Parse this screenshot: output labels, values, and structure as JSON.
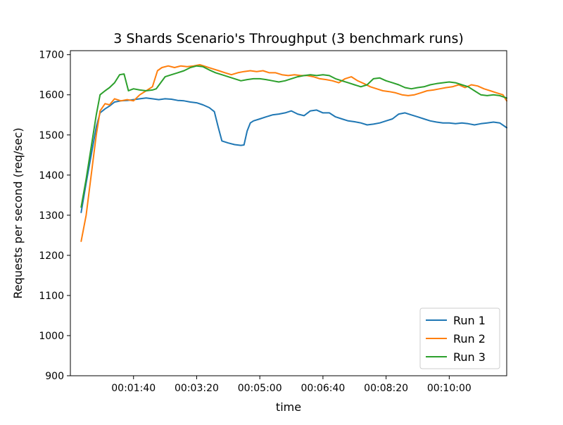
{
  "chart_data": {
    "type": "line",
    "title": "3 Shards Scenario's Throughput (3 benchmark runs)",
    "xlabel": "time",
    "ylabel": "Requests per second (req/sec)",
    "xlim_seconds": [
      0,
      691
    ],
    "ylim": [
      900,
      1710
    ],
    "x_ticks": [
      {
        "value": 100,
        "label": "00:01:40"
      },
      {
        "value": 200,
        "label": "00:03:20"
      },
      {
        "value": 300,
        "label": "00:05:00"
      },
      {
        "value": 400,
        "label": "00:06:40"
      },
      {
        "value": 500,
        "label": "00:08:20"
      },
      {
        "value": 600,
        "label": "00:10:00"
      }
    ],
    "y_ticks": [
      900,
      1000,
      1100,
      1200,
      1300,
      1400,
      1500,
      1600,
      1700
    ],
    "grid": false,
    "legend_position": "bottom-right",
    "x_unit": "seconds from start of run",
    "series": [
      {
        "name": "Run 1",
        "color": "#1f77b4",
        "points": [
          [
            17,
            1307
          ],
          [
            25,
            1380
          ],
          [
            33,
            1450
          ],
          [
            41,
            1520
          ],
          [
            47,
            1555
          ],
          [
            55,
            1565
          ],
          [
            62,
            1572
          ],
          [
            70,
            1582
          ],
          [
            80,
            1585
          ],
          [
            90,
            1586
          ],
          [
            100,
            1588
          ],
          [
            110,
            1590
          ],
          [
            120,
            1592
          ],
          [
            130,
            1590
          ],
          [
            140,
            1588
          ],
          [
            150,
            1590
          ],
          [
            160,
            1589
          ],
          [
            170,
            1586
          ],
          [
            180,
            1585
          ],
          [
            190,
            1582
          ],
          [
            200,
            1580
          ],
          [
            210,
            1575
          ],
          [
            220,
            1568
          ],
          [
            228,
            1558
          ],
          [
            234,
            1520
          ],
          [
            240,
            1485
          ],
          [
            250,
            1480
          ],
          [
            260,
            1476
          ],
          [
            270,
            1474
          ],
          [
            275,
            1475
          ],
          [
            280,
            1510
          ],
          [
            285,
            1530
          ],
          [
            290,
            1535
          ],
          [
            300,
            1540
          ],
          [
            310,
            1545
          ],
          [
            320,
            1550
          ],
          [
            330,
            1552
          ],
          [
            340,
            1555
          ],
          [
            350,
            1560
          ],
          [
            360,
            1552
          ],
          [
            370,
            1548
          ],
          [
            380,
            1560
          ],
          [
            390,
            1562
          ],
          [
            400,
            1555
          ],
          [
            410,
            1555
          ],
          [
            420,
            1545
          ],
          [
            430,
            1540
          ],
          [
            440,
            1535
          ],
          [
            450,
            1533
          ],
          [
            460,
            1530
          ],
          [
            470,
            1525
          ],
          [
            480,
            1527
          ],
          [
            490,
            1530
          ],
          [
            500,
            1535
          ],
          [
            510,
            1540
          ],
          [
            520,
            1552
          ],
          [
            530,
            1555
          ],
          [
            540,
            1550
          ],
          [
            550,
            1545
          ],
          [
            560,
            1540
          ],
          [
            570,
            1535
          ],
          [
            580,
            1532
          ],
          [
            590,
            1530
          ],
          [
            600,
            1530
          ],
          [
            610,
            1528
          ],
          [
            620,
            1530
          ],
          [
            630,
            1528
          ],
          [
            640,
            1525
          ],
          [
            650,
            1528
          ],
          [
            660,
            1530
          ],
          [
            670,
            1532
          ],
          [
            680,
            1530
          ],
          [
            691,
            1518
          ]
        ]
      },
      {
        "name": "Run 2",
        "color": "#ff7f0e",
        "points": [
          [
            17,
            1235
          ],
          [
            25,
            1300
          ],
          [
            33,
            1400
          ],
          [
            41,
            1500
          ],
          [
            47,
            1560
          ],
          [
            55,
            1578
          ],
          [
            62,
            1575
          ],
          [
            70,
            1590
          ],
          [
            80,
            1585
          ],
          [
            90,
            1588
          ],
          [
            100,
            1585
          ],
          [
            110,
            1600
          ],
          [
            120,
            1610
          ],
          [
            130,
            1620
          ],
          [
            138,
            1660
          ],
          [
            145,
            1668
          ],
          [
            155,
            1672
          ],
          [
            165,
            1668
          ],
          [
            175,
            1672
          ],
          [
            185,
            1670
          ],
          [
            195,
            1672
          ],
          [
            205,
            1675
          ],
          [
            215,
            1670
          ],
          [
            225,
            1665
          ],
          [
            235,
            1660
          ],
          [
            245,
            1655
          ],
          [
            255,
            1650
          ],
          [
            265,
            1655
          ],
          [
            275,
            1658
          ],
          [
            285,
            1660
          ],
          [
            295,
            1658
          ],
          [
            305,
            1660
          ],
          [
            315,
            1655
          ],
          [
            325,
            1655
          ],
          [
            335,
            1650
          ],
          [
            345,
            1648
          ],
          [
            355,
            1650
          ],
          [
            365,
            1648
          ],
          [
            375,
            1648
          ],
          [
            385,
            1645
          ],
          [
            395,
            1640
          ],
          [
            405,
            1638
          ],
          [
            415,
            1635
          ],
          [
            425,
            1630
          ],
          [
            435,
            1640
          ],
          [
            445,
            1645
          ],
          [
            455,
            1635
          ],
          [
            465,
            1628
          ],
          [
            475,
            1620
          ],
          [
            485,
            1615
          ],
          [
            495,
            1610
          ],
          [
            505,
            1608
          ],
          [
            515,
            1605
          ],
          [
            525,
            1600
          ],
          [
            535,
            1598
          ],
          [
            545,
            1600
          ],
          [
            555,
            1605
          ],
          [
            565,
            1610
          ],
          [
            575,
            1612
          ],
          [
            585,
            1615
          ],
          [
            595,
            1618
          ],
          [
            605,
            1620
          ],
          [
            615,
            1625
          ],
          [
            625,
            1618
          ],
          [
            635,
            1625
          ],
          [
            645,
            1622
          ],
          [
            655,
            1615
          ],
          [
            665,
            1610
          ],
          [
            675,
            1605
          ],
          [
            685,
            1600
          ],
          [
            691,
            1585
          ]
        ]
      },
      {
        "name": "Run 3",
        "color": "#2ca02c",
        "points": [
          [
            17,
            1320
          ],
          [
            25,
            1390
          ],
          [
            33,
            1470
          ],
          [
            41,
            1550
          ],
          [
            47,
            1600
          ],
          [
            55,
            1610
          ],
          [
            62,
            1618
          ],
          [
            70,
            1630
          ],
          [
            78,
            1650
          ],
          [
            85,
            1652
          ],
          [
            92,
            1610
          ],
          [
            100,
            1615
          ],
          [
            110,
            1612
          ],
          [
            120,
            1610
          ],
          [
            130,
            1612
          ],
          [
            136,
            1615
          ],
          [
            143,
            1630
          ],
          [
            150,
            1645
          ],
          [
            160,
            1650
          ],
          [
            170,
            1655
          ],
          [
            180,
            1660
          ],
          [
            190,
            1668
          ],
          [
            200,
            1672
          ],
          [
            210,
            1670
          ],
          [
            220,
            1662
          ],
          [
            230,
            1655
          ],
          [
            240,
            1650
          ],
          [
            250,
            1645
          ],
          [
            260,
            1640
          ],
          [
            270,
            1635
          ],
          [
            280,
            1638
          ],
          [
            290,
            1640
          ],
          [
            300,
            1640
          ],
          [
            310,
            1638
          ],
          [
            320,
            1635
          ],
          [
            330,
            1632
          ],
          [
            340,
            1635
          ],
          [
            350,
            1640
          ],
          [
            360,
            1645
          ],
          [
            370,
            1648
          ],
          [
            380,
            1650
          ],
          [
            390,
            1648
          ],
          [
            400,
            1650
          ],
          [
            410,
            1648
          ],
          [
            420,
            1640
          ],
          [
            430,
            1635
          ],
          [
            440,
            1630
          ],
          [
            450,
            1625
          ],
          [
            460,
            1620
          ],
          [
            470,
            1625
          ],
          [
            480,
            1640
          ],
          [
            490,
            1642
          ],
          [
            500,
            1635
          ],
          [
            510,
            1630
          ],
          [
            520,
            1625
          ],
          [
            530,
            1618
          ],
          [
            540,
            1615
          ],
          [
            550,
            1618
          ],
          [
            560,
            1620
          ],
          [
            570,
            1625
          ],
          [
            580,
            1628
          ],
          [
            590,
            1630
          ],
          [
            600,
            1632
          ],
          [
            610,
            1630
          ],
          [
            620,
            1625
          ],
          [
            630,
            1620
          ],
          [
            640,
            1610
          ],
          [
            650,
            1600
          ],
          [
            660,
            1598
          ],
          [
            670,
            1600
          ],
          [
            680,
            1598
          ],
          [
            691,
            1592
          ]
        ]
      }
    ]
  }
}
